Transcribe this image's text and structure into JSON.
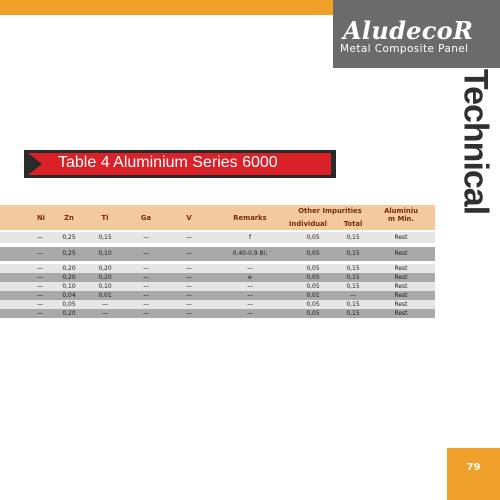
{
  "brand": {
    "name": "AludecoR",
    "tagline": "Metal Composite Panel"
  },
  "side_title": "Technical",
  "banner": {
    "title": "Table 4  Aluminium Series 6000"
  },
  "table": {
    "headers": {
      "ni": "Ni",
      "zn": "Zn",
      "ti": "Ti",
      "ga": "Ga",
      "v": "V",
      "remarks": "Remarks",
      "other_impurities": "Other Impurities",
      "individual": "Individual",
      "total": "Total",
      "aluminium_1": "Aluminiu",
      "aluminium_2": "m Min."
    },
    "rows": [
      [
        "—",
        "0,25",
        "0,15",
        "—",
        "—",
        "f",
        "0,05",
        "0,15",
        "Rest"
      ],
      [
        "—",
        "0,25",
        "0,10",
        "—",
        "—",
        "0,40-0,9 Bi;",
        "0,05",
        "0,15",
        "Rest"
      ],
      [
        "—",
        "0,20",
        "0,20",
        "—",
        "—",
        "—",
        "0,05",
        "0,15",
        "Rest"
      ],
      [
        "—",
        "0,20",
        "0,20",
        "—",
        "—",
        "e",
        "0,05",
        "0,15",
        "Rest"
      ],
      [
        "—",
        "0,10",
        "0,10",
        "—",
        "—",
        "—",
        "0,05",
        "0,15",
        "Rest"
      ],
      [
        "—",
        "0,04",
        "0,01",
        "—",
        "—",
        "—",
        "0,01",
        "—",
        "Rest"
      ],
      [
        "—",
        "0,05",
        "—",
        "—",
        "—",
        "—",
        "0,05",
        "0,15",
        "Rest"
      ],
      [
        "—",
        "0,20",
        "—",
        "—",
        "—",
        "—",
        "0,05",
        "0,15",
        "Rest"
      ]
    ],
    "row_colors": [
      "#e6e6e6",
      "#a9a9a9",
      "#e6e6e6",
      "#a9a9a9",
      "#e6e6e6",
      "#a9a9a9",
      "#e6e6e6",
      "#a9a9a9"
    ]
  },
  "page_number": "79",
  "colors": {
    "accent_orange": "#f0a12a",
    "banner_red": "#d92127",
    "header_peach": "#f3c99e",
    "logo_gray": "#6b6b6b"
  }
}
